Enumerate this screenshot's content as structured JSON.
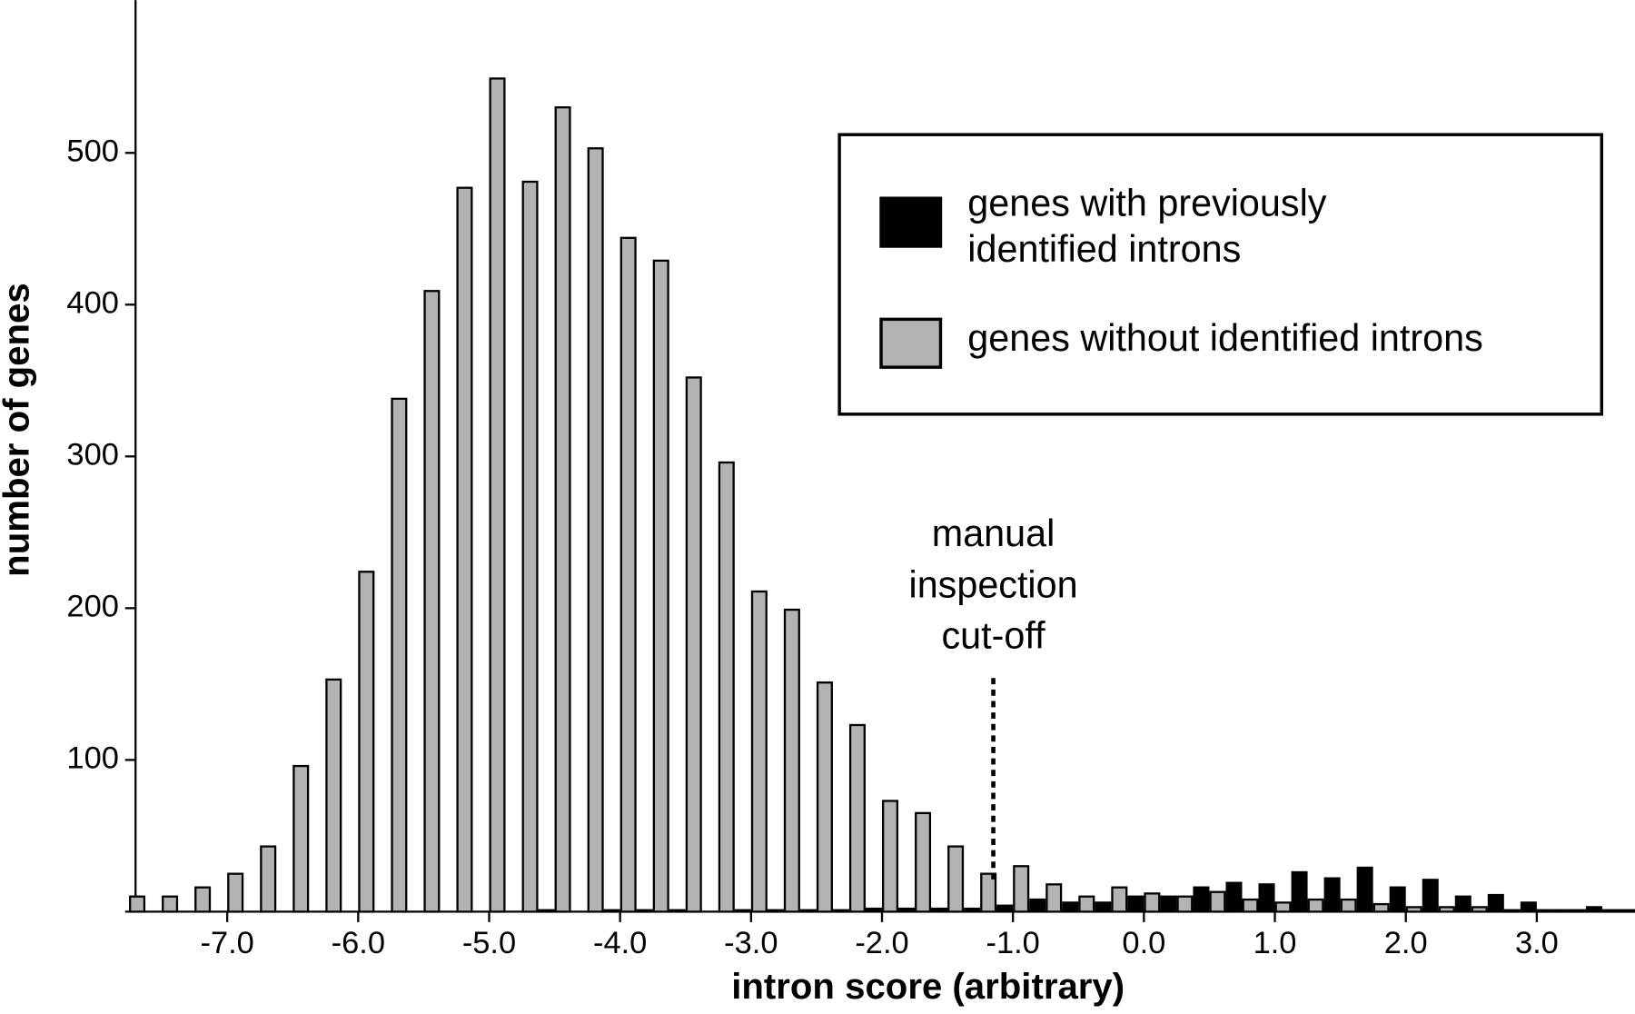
{
  "chart_data": {
    "type": "histogram",
    "xlabel": "intron score (arbitrary)",
    "ylabel": "number of genes",
    "bins": [
      -7.75,
      -7.5,
      -7.25,
      -7,
      -6.75,
      -6.5,
      -6.25,
      -6,
      -5.75,
      -5.5,
      -5.25,
      -5,
      -4.75,
      -4.5,
      -4.25,
      -4,
      -3.75,
      -3.5,
      -3.25,
      -3,
      -2.75,
      -2.5,
      -2.25,
      -2,
      -1.75,
      -1.5,
      -1.25,
      -1,
      -0.75,
      -0.5,
      -0.25,
      0,
      0.25,
      0.5,
      0.75,
      1,
      1.25,
      1.5,
      1.75,
      2,
      2.25,
      2.5,
      2.75,
      3,
      3.25,
      3.5,
      3.75
    ],
    "series": [
      {
        "name": "genes with previously identified introns",
        "color": "#000000",
        "values": [
          0,
          0,
          0,
          0,
          0,
          0,
          0,
          0,
          0,
          0,
          0,
          0,
          1,
          0,
          1,
          1,
          1,
          0,
          1,
          1,
          1,
          1,
          2,
          2,
          2,
          2,
          4,
          8,
          6,
          6,
          10,
          10,
          16,
          19,
          18,
          26,
          22,
          29,
          16,
          21,
          10,
          11,
          6,
          1,
          3,
          1
        ]
      },
      {
        "name": "genes without identified introns",
        "color": "#b3b3b3",
        "values": [
          10,
          10,
          16,
          25,
          43,
          96,
          153,
          224,
          338,
          409,
          477,
          549,
          481,
          530,
          503,
          444,
          429,
          352,
          296,
          211,
          199,
          151,
          123,
          73,
          65,
          43,
          25,
          30,
          18,
          10,
          16,
          12,
          10,
          13,
          8,
          6,
          8,
          8,
          5,
          3,
          3,
          3,
          1,
          1,
          1,
          1
        ]
      }
    ],
    "xlim": [
      -7.7,
      3.75
    ],
    "xticks": [
      {
        "value": -7,
        "label": "-7.0"
      },
      {
        "value": -6,
        "label": "-6.0"
      },
      {
        "value": -5,
        "label": "-5.0"
      },
      {
        "value": -4,
        "label": "-4.0"
      },
      {
        "value": -3,
        "label": "-3.0"
      },
      {
        "value": -2,
        "label": "-2.0"
      },
      {
        "value": -1,
        "label": "-1.0"
      },
      {
        "value": 0,
        "label": "0.0"
      },
      {
        "value": 1,
        "label": "1.0"
      },
      {
        "value": 2,
        "label": "2.0"
      },
      {
        "value": 3,
        "label": "3.0"
      }
    ],
    "ylim": [
      0,
      600
    ],
    "yticks": [
      100,
      200,
      300,
      400,
      500
    ],
    "cutoff": -1.15,
    "annotation": [
      "manual",
      "inspection",
      "cut-off"
    ],
    "legend": "upper right"
  }
}
